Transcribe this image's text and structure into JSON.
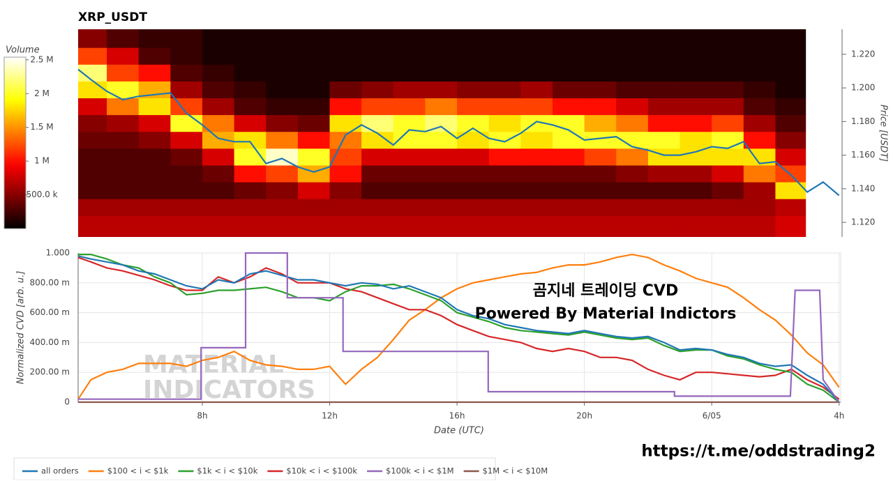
{
  "chart_data": [
    {
      "type": "heatmap",
      "title": "XRP_USDT",
      "xlim": [
        4.1,
        28.05
      ],
      "x_bins": [
        4.1,
        5,
        6,
        7,
        8,
        9,
        10,
        11,
        12,
        13,
        14,
        15,
        16,
        17,
        18,
        19,
        20,
        21,
        22,
        23,
        24,
        25,
        26,
        26.95
      ],
      "y_bins": [
        1.111,
        1.124,
        1.134,
        1.144,
        1.154,
        1.164,
        1.174,
        1.184,
        1.194,
        1.204,
        1.214,
        1.224,
        1.235
      ],
      "z": [
        [
          700000,
          600000,
          300000,
          300000,
          300000,
          400000,
          500000,
          800000,
          1800000,
          2200000,
          1200000,
          500000
        ],
        [
          700000,
          600000,
          300000,
          300000,
          300000,
          400000,
          600000,
          1400000,
          2000000,
          1200000,
          800000,
          300000
        ],
        [
          700000,
          600000,
          300000,
          300000,
          300000,
          500000,
          800000,
          1800000,
          1600000,
          1000000,
          300000,
          200000
        ],
        [
          700000,
          600000,
          300000,
          300000,
          400000,
          800000,
          2000000,
          1200000,
          600000,
          300000,
          200000,
          200000
        ],
        [
          700000,
          600000,
          300000,
          400000,
          800000,
          1600000,
          1400000,
          600000,
          300000,
          200000,
          100000,
          100000
        ],
        [
          700000,
          600000,
          400000,
          1000000,
          2000000,
          1800000,
          800000,
          300000,
          200000,
          100000,
          100000,
          100000
        ],
        [
          700000,
          600000,
          500000,
          1200000,
          2400000,
          1400000,
          500000,
          200000,
          100000,
          100000,
          100000,
          100000
        ],
        [
          700000,
          600000,
          800000,
          1600000,
          2000000,
          1000000,
          400000,
          200000,
          100000,
          100000,
          100000,
          100000
        ],
        [
          700000,
          600000,
          500000,
          1000000,
          1200000,
          1400000,
          1800000,
          1000000,
          400000,
          100000,
          100000,
          100000
        ],
        [
          700000,
          600000,
          300000,
          400000,
          800000,
          1800000,
          2200000,
          1200000,
          500000,
          100000,
          100000,
          100000
        ],
        [
          700000,
          600000,
          300000,
          400000,
          800000,
          2000000,
          2000000,
          1200000,
          600000,
          100000,
          100000,
          100000
        ],
        [
          700000,
          600000,
          300000,
          400000,
          800000,
          2000000,
          2200000,
          1400000,
          600000,
          100000,
          100000,
          100000
        ],
        [
          700000,
          600000,
          300000,
          400000,
          800000,
          1800000,
          2000000,
          1200000,
          500000,
          100000,
          100000,
          100000
        ],
        [
          700000,
          600000,
          300000,
          400000,
          1000000,
          2000000,
          1800000,
          1200000,
          500000,
          100000,
          100000,
          100000
        ],
        [
          700000,
          600000,
          300000,
          400000,
          1000000,
          1800000,
          2000000,
          1200000,
          600000,
          100000,
          100000,
          100000
        ],
        [
          700000,
          600000,
          300000,
          400000,
          1000000,
          2000000,
          2000000,
          1000000,
          400000,
          100000,
          100000,
          100000
        ],
        [
          700000,
          600000,
          300000,
          400000,
          1200000,
          2000000,
          1600000,
          1000000,
          400000,
          100000,
          100000,
          100000
        ],
        [
          700000,
          600000,
          300000,
          500000,
          1400000,
          2000000,
          1400000,
          800000,
          300000,
          100000,
          100000,
          100000
        ],
        [
          700000,
          600000,
          300000,
          600000,
          1800000,
          2000000,
          1000000,
          600000,
          300000,
          100000,
          100000,
          100000
        ],
        [
          700000,
          600000,
          300000,
          600000,
          1800000,
          1800000,
          1000000,
          600000,
          300000,
          100000,
          100000,
          100000
        ],
        [
          700000,
          600000,
          400000,
          800000,
          1800000,
          2000000,
          1200000,
          600000,
          300000,
          100000,
          100000,
          100000
        ],
        [
          700000,
          600000,
          600000,
          1400000,
          1800000,
          1000000,
          600000,
          300000,
          200000,
          100000,
          100000,
          100000
        ],
        [
          800000,
          700000,
          1800000,
          1200000,
          800000,
          500000,
          300000,
          200000,
          100000,
          100000,
          100000,
          100000
        ]
      ],
      "colorbar": {
        "title": "Volume",
        "lim": [
          0,
          2540000
        ],
        "ticks": [
          {
            "value": 500000,
            "label": "500.0 k"
          },
          {
            "value": 1000000,
            "label": "1 M"
          },
          {
            "value": 1500000,
            "label": "1.5 M"
          },
          {
            "value": 2000000,
            "label": "2 M"
          },
          {
            "value": 2500000,
            "label": "2.5 M"
          }
        ]
      },
      "y2label": "Price [USDT]",
      "y2lim": [
        1.1113,
        1.2349
      ],
      "y2ticks": [
        {
          "value": 1.12,
          "label": "1.120"
        },
        {
          "value": 1.14,
          "label": "1.140"
        },
        {
          "value": 1.16,
          "label": "1.160"
        },
        {
          "value": 1.18,
          "label": "1.180"
        },
        {
          "value": 1.2,
          "label": "1.200"
        },
        {
          "value": 1.22,
          "label": "1.220"
        }
      ],
      "price": {
        "color": "#1f77b4",
        "axis": "y2",
        "x": [
          4.1,
          4.5,
          5,
          5.5,
          6,
          6.5,
          7,
          7.5,
          8,
          8.5,
          9,
          9.5,
          10,
          10.5,
          11,
          11.5,
          12,
          12.5,
          13,
          13.5,
          14,
          14.5,
          15,
          15.5,
          16,
          16.5,
          17,
          17.5,
          18,
          18.5,
          19,
          19.5,
          20,
          20.5,
          21,
          21.5,
          22,
          22.5,
          23,
          23.5,
          24,
          24.5,
          25,
          25.5,
          26,
          26.5,
          27,
          27.5,
          28
        ],
        "values": [
          1.211,
          1.205,
          1.198,
          1.193,
          1.195,
          1.196,
          1.197,
          1.185,
          1.178,
          1.17,
          1.168,
          1.168,
          1.155,
          1.158,
          1.153,
          1.15,
          1.153,
          1.172,
          1.178,
          1.173,
          1.166,
          1.175,
          1.174,
          1.177,
          1.17,
          1.176,
          1.17,
          1.168,
          1.173,
          1.18,
          1.178,
          1.175,
          1.169,
          1.17,
          1.171,
          1.165,
          1.163,
          1.16,
          1.16,
          1.162,
          1.165,
          1.164,
          1.168,
          1.155,
          1.156,
          1.148,
          1.138,
          1.144,
          1.136
        ]
      }
    },
    {
      "type": "line",
      "xlabel": "Date (UTC)",
      "ylabel": "Normalized CVD [arb. u.]",
      "xlim": [
        4.1,
        28.05
      ],
      "ylim": [
        0,
        1
      ],
      "xticks": [
        {
          "value": 8,
          "label": "8h"
        },
        {
          "value": 12,
          "label": "12h"
        },
        {
          "value": 16,
          "label": "16h"
        },
        {
          "value": 20,
          "label": "20h"
        },
        {
          "value": 24,
          "label": "6/05"
        },
        {
          "value": 28,
          "label": "4h"
        }
      ],
      "yticks": [
        0,
        {
          "value": 0.2,
          "label": "200.00 m"
        },
        {
          "value": 0.4,
          "label": "400.00 m"
        },
        {
          "value": 0.6,
          "label": "600.00 m"
        },
        {
          "value": 0.8,
          "label": "800.00 m"
        },
        {
          "value": 1,
          "label": "1.000"
        }
      ],
      "grid": true,
      "annotations": [
        "곰지네 트레이딩 CVD",
        "Powered By Material Indictors"
      ],
      "watermark": [
        "MATERIAL",
        "INDICATORS"
      ],
      "x": [
        4.1,
        4.5,
        5,
        5.5,
        6,
        6.5,
        7,
        7.5,
        8,
        8.5,
        9,
        9.5,
        10,
        10.5,
        11,
        11.5,
        12,
        12.5,
        13,
        13.5,
        14,
        14.5,
        15,
        15.5,
        16,
        16.5,
        17,
        17.5,
        18,
        18.5,
        19,
        19.5,
        20,
        20.5,
        21,
        21.5,
        22,
        22.5,
        23,
        23.5,
        24,
        24.5,
        25,
        25.5,
        26,
        26.5,
        27,
        27.5,
        28
      ],
      "series": [
        {
          "name": "all orders",
          "color": "#1f77b4",
          "values": [
            0.98,
            0.96,
            0.94,
            0.92,
            0.88,
            0.86,
            0.82,
            0.78,
            0.76,
            0.82,
            0.8,
            0.86,
            0.88,
            0.85,
            0.82,
            0.82,
            0.8,
            0.78,
            0.8,
            0.79,
            0.76,
            0.78,
            0.74,
            0.7,
            0.62,
            0.58,
            0.56,
            0.52,
            0.5,
            0.48,
            0.47,
            0.46,
            0.48,
            0.46,
            0.44,
            0.43,
            0.44,
            0.4,
            0.35,
            0.36,
            0.35,
            0.32,
            0.3,
            0.26,
            0.24,
            0.25,
            0.18,
            0.12,
            0.0
          ]
        },
        {
          "name": "$100 < i < $1k",
          "color": "#ff7f0e",
          "values": [
            0.02,
            0.15,
            0.2,
            0.22,
            0.26,
            0.26,
            0.26,
            0.24,
            0.28,
            0.3,
            0.34,
            0.28,
            0.25,
            0.24,
            0.22,
            0.22,
            0.24,
            0.12,
            0.22,
            0.3,
            0.42,
            0.55,
            0.62,
            0.7,
            0.76,
            0.8,
            0.82,
            0.84,
            0.86,
            0.87,
            0.9,
            0.92,
            0.92,
            0.94,
            0.97,
            0.99,
            0.97,
            0.92,
            0.88,
            0.83,
            0.8,
            0.77,
            0.7,
            0.62,
            0.55,
            0.45,
            0.33,
            0.25,
            0.1
          ]
        },
        {
          "name": "$1k < i < $10k",
          "color": "#2ca02c",
          "values": [
            0.99,
            0.99,
            0.96,
            0.92,
            0.9,
            0.84,
            0.8,
            0.72,
            0.73,
            0.75,
            0.75,
            0.76,
            0.77,
            0.74,
            0.7,
            0.7,
            0.68,
            0.74,
            0.78,
            0.78,
            0.79,
            0.76,
            0.72,
            0.68,
            0.6,
            0.57,
            0.54,
            0.5,
            0.48,
            0.47,
            0.46,
            0.45,
            0.47,
            0.45,
            0.43,
            0.42,
            0.43,
            0.38,
            0.34,
            0.35,
            0.35,
            0.31,
            0.29,
            0.25,
            0.22,
            0.2,
            0.12,
            0.08,
            0.0
          ]
        },
        {
          "name": "$10k < i < $100k",
          "color": "#d62728",
          "values": [
            0.97,
            0.94,
            0.9,
            0.88,
            0.85,
            0.82,
            0.78,
            0.75,
            0.75,
            0.84,
            0.8,
            0.84,
            0.9,
            0.86,
            0.8,
            0.8,
            0.8,
            0.76,
            0.74,
            0.7,
            0.66,
            0.62,
            0.62,
            0.58,
            0.52,
            0.48,
            0.44,
            0.42,
            0.4,
            0.36,
            0.34,
            0.36,
            0.34,
            0.3,
            0.3,
            0.28,
            0.22,
            0.18,
            0.15,
            0.2,
            0.2,
            0.19,
            0.18,
            0.17,
            0.18,
            0.22,
            0.15,
            0.1,
            0.02
          ]
        },
        {
          "name": "$100k < i < $1M",
          "color": "#9467bd",
          "x": [
            4.1,
            7.96,
            7.96,
            9.36,
            9.36,
            10.67,
            10.67,
            12.42,
            12.42,
            16.98,
            16.98,
            22.83,
            22.83,
            26.47,
            26.62,
            27.39,
            27.5,
            28
          ],
          "values": [
            0.02,
            0.02,
            0.365,
            0.365,
            1.0,
            1.0,
            0.7,
            0.7,
            0.34,
            0.34,
            0.07,
            0.07,
            0.04,
            0.04,
            0.75,
            0.75,
            0.15,
            0.0
          ]
        },
        {
          "name": "$1M < i < $10M",
          "color": "#8c564b",
          "values": [
            0,
            0,
            0,
            0,
            0,
            0,
            0,
            0,
            0,
            0,
            0,
            0,
            0,
            0,
            0,
            0,
            0,
            0,
            0,
            0,
            0,
            0,
            0,
            0,
            0,
            0,
            0,
            0,
            0,
            0,
            0,
            0,
            0,
            0,
            0,
            0,
            0,
            0,
            0,
            0,
            0,
            0,
            0,
            0,
            0,
            0,
            0,
            0,
            0
          ]
        }
      ]
    }
  ],
  "link": "https://t.me/oddstrading2"
}
